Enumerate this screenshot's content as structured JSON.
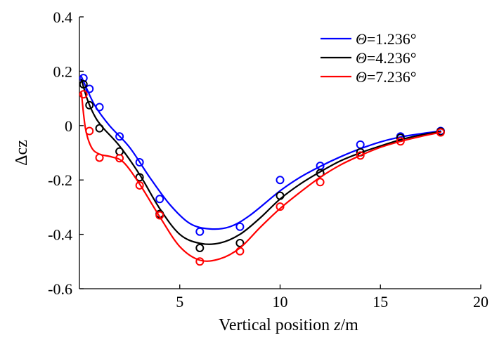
{
  "chart_data": {
    "type": "line",
    "title": "",
    "xlabel_prefix": "Vertical position ",
    "xlabel_italic": "z",
    "xlabel_suffix": "/m",
    "ylabel": "Δcz",
    "xlim": [
      0,
      20
    ],
    "ylim": [
      -0.6,
      0.4
    ],
    "xticks": [
      5,
      10,
      15,
      20
    ],
    "xtick_labels": [
      "5",
      "10",
      "15",
      "20"
    ],
    "yticks": [
      -0.6,
      -0.4,
      -0.2,
      0,
      0.2,
      0.4
    ],
    "ytick_labels": [
      "-0.6",
      "-0.4",
      "-0.2",
      "0",
      "0.2",
      "0.4"
    ],
    "legend_position": "top-right",
    "series": [
      {
        "name": "Θ=1.236°",
        "symbol": "Θ",
        "label_value": "=1.236°",
        "color": "#0000ff",
        "points_x": [
          0.2,
          0.5,
          1,
          2,
          3,
          4,
          6,
          8,
          10,
          12,
          14,
          16,
          18
        ],
        "points_y": [
          0.175,
          0.135,
          0.068,
          -0.04,
          -0.135,
          -0.27,
          -0.39,
          -0.372,
          -0.2,
          -0.148,
          -0.07,
          -0.04,
          -0.02
        ],
        "curve_x": [
          0.1,
          0.4,
          0.8,
          1.5,
          2.5,
          3.5,
          4.5,
          5.5,
          6.5,
          7.5,
          8.5,
          10,
          11,
          12,
          13,
          14,
          15,
          16,
          17,
          18
        ],
        "curve_y": [
          0.18,
          0.13,
          0.07,
          0.0,
          -0.08,
          -0.19,
          -0.29,
          -0.36,
          -0.38,
          -0.372,
          -0.33,
          -0.24,
          -0.19,
          -0.15,
          -0.115,
          -0.085,
          -0.06,
          -0.042,
          -0.03,
          -0.02
        ]
      },
      {
        "name": "Θ=4.236°",
        "symbol": "Θ",
        "label_value": "=4.236°",
        "color": "#000000",
        "points_x": [
          0.2,
          0.5,
          1,
          2,
          3,
          4,
          6,
          8,
          10,
          12,
          14,
          16,
          18
        ],
        "points_y": [
          0.152,
          0.075,
          -0.01,
          -0.095,
          -0.19,
          -0.325,
          -0.45,
          -0.432,
          -0.258,
          -0.175,
          -0.098,
          -0.045,
          -0.022
        ],
        "curve_x": [
          0.1,
          0.4,
          0.8,
          1.2,
          2.0,
          3.0,
          4.0,
          5.0,
          6.0,
          7.0,
          8.0,
          9.0,
          10.0,
          11.0,
          12.0,
          13.0,
          14.0,
          15.0,
          16.0,
          17.0,
          18.0
        ],
        "curve_y": [
          0.17,
          0.095,
          0.03,
          -0.01,
          -0.075,
          -0.18,
          -0.305,
          -0.4,
          -0.433,
          -0.432,
          -0.4,
          -0.34,
          -0.27,
          -0.215,
          -0.17,
          -0.13,
          -0.1,
          -0.075,
          -0.052,
          -0.035,
          -0.022
        ]
      },
      {
        "name": "Θ=7.236°",
        "symbol": "Θ",
        "label_value": "=7.236°",
        "color": "#ff0000",
        "points_x": [
          0.2,
          0.5,
          1,
          2,
          3,
          4,
          6,
          8,
          10,
          12,
          14,
          16,
          18
        ],
        "points_y": [
          0.115,
          -0.02,
          -0.118,
          -0.12,
          -0.22,
          -0.33,
          -0.5,
          -0.462,
          -0.298,
          -0.208,
          -0.11,
          -0.058,
          -0.025
        ],
        "curve_x": [
          0.1,
          0.3,
          0.6,
          1.0,
          1.6,
          2.2,
          3.0,
          4.0,
          5.0,
          6.0,
          7.0,
          8.0,
          9.0,
          10.0,
          11.0,
          12.0,
          13.0,
          14.0,
          15.0,
          16.0,
          17.0,
          18.0
        ],
        "curve_y": [
          0.12,
          -0.01,
          -0.08,
          -0.105,
          -0.115,
          -0.135,
          -0.215,
          -0.335,
          -0.445,
          -0.495,
          -0.49,
          -0.45,
          -0.375,
          -0.305,
          -0.245,
          -0.19,
          -0.145,
          -0.11,
          -0.08,
          -0.058,
          -0.04,
          -0.025
        ]
      }
    ]
  }
}
